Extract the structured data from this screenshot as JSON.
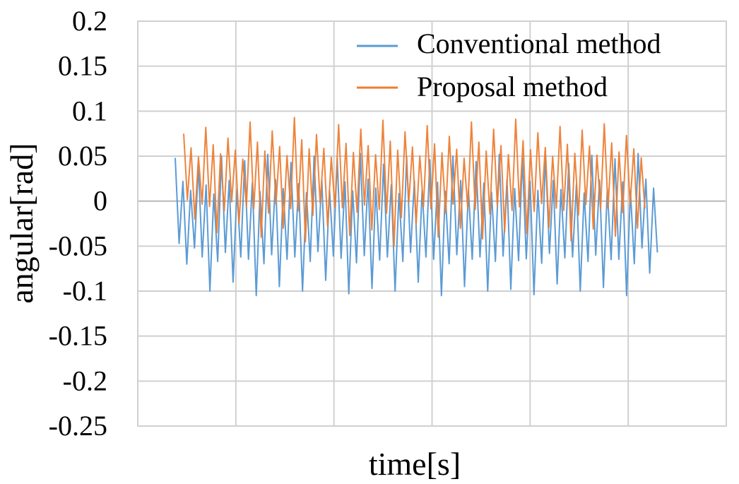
{
  "chart_data": {
    "type": "line",
    "title": "",
    "xlabel": "time[s]",
    "ylabel": "angular[rad]",
    "ylim": [
      -0.25,
      0.2
    ],
    "ytick_labels": [
      "0.2",
      "0.15",
      "0.1",
      "0.05",
      "0",
      "-0.05",
      "-0.1",
      "-0.15",
      "-0.2",
      "-0.25"
    ],
    "x_tick_labels_shown": false,
    "grid": true,
    "legend_position": "top-right",
    "series": [
      {
        "name": "Conventional method",
        "color": "#5b9bd5",
        "peaks": [
          0.048,
          0.04,
          0.05,
          0.045,
          0.052,
          0.043,
          0.05,
          0.047,
          0.053,
          0.041,
          0.049,
          0.046,
          0.05,
          0.044,
          0.052,
          0.048,
          0.05,
          0.042,
          0.051,
          0.047,
          0.053
        ],
        "troughs": [
          -0.07,
          -0.1,
          -0.09,
          -0.105,
          -0.095,
          -0.1,
          -0.088,
          -0.103,
          -0.097,
          -0.1,
          -0.09,
          -0.105,
          -0.095,
          -0.1,
          -0.098,
          -0.104,
          -0.092,
          -0.1,
          -0.096,
          -0.105,
          -0.08
        ]
      },
      {
        "name": "Proposal method",
        "color": "#ed7d31",
        "peaks": [
          0.075,
          0.082,
          0.07,
          0.088,
          0.078,
          0.093,
          0.074,
          0.085,
          0.08,
          0.09,
          0.077,
          0.084,
          0.072,
          0.088,
          0.08,
          0.091,
          0.076,
          0.083,
          0.079,
          0.086,
          0.073
        ],
        "troughs": [
          -0.02,
          -0.035,
          -0.025,
          -0.04,
          -0.03,
          -0.045,
          -0.028,
          -0.038,
          -0.032,
          -0.05,
          -0.026,
          -0.04,
          -0.03,
          -0.042,
          -0.034,
          -0.036,
          -0.029,
          -0.044,
          -0.031,
          -0.039,
          -0.03
        ]
      }
    ]
  }
}
